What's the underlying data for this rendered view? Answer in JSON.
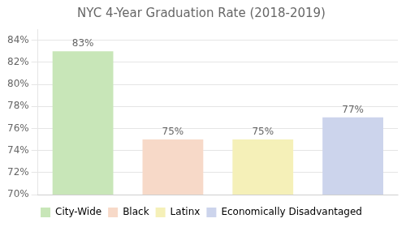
{
  "chart_data": {
    "type": "bar",
    "title": "NYC 4-Year Graduation Rate (2018-2019)",
    "categories": [
      "City-Wide",
      "Black",
      "Latinx",
      "Economically Disadvantaged"
    ],
    "values": [
      83,
      75,
      75,
      77
    ],
    "value_labels": [
      "83%",
      "75%",
      "75%",
      "77%"
    ],
    "data_labels": true,
    "colors": [
      "#c8e6b8",
      "#f7d9c8",
      "#f5f0b8",
      "#ccd4ec"
    ],
    "ylim": [
      70,
      85
    ],
    "yticks": [
      {
        "value": 70,
        "label": "70%"
      },
      {
        "value": 72,
        "label": "72%"
      },
      {
        "value": 74,
        "label": "74%"
      },
      {
        "value": 76,
        "label": "76%"
      },
      {
        "value": 78,
        "label": "78%"
      },
      {
        "value": 80,
        "label": "80%"
      },
      {
        "value": 82,
        "label": "82%"
      },
      {
        "value": 84,
        "label": "84%"
      }
    ],
    "grid": true,
    "legend": "bottom",
    "tick_labels": "y"
  }
}
